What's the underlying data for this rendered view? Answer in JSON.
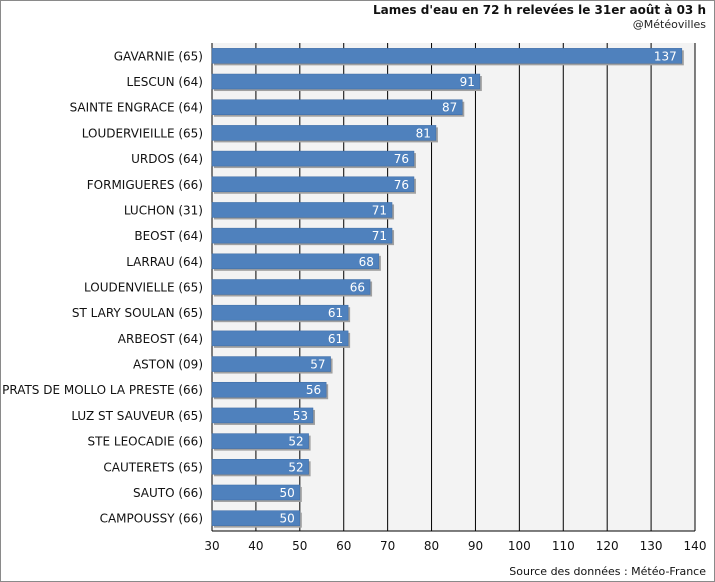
{
  "header": {
    "title": "Lames d'eau en 72 h relevées le 31er août à 03 h",
    "credit": "@Météovilles"
  },
  "footer": {
    "source": "Source des données : Météo-France"
  },
  "colors": {
    "bar_fill": "#4f81bd",
    "bar_shadow": "#a0a0a0",
    "plot_background": "#f3f3f3",
    "grid": "#000000",
    "value_text": "#ffffff"
  },
  "chart_data": {
    "type": "bar",
    "orientation": "horizontal",
    "categories": [
      "GAVARNIE (65)",
      "LESCUN (64)",
      "SAINTE ENGRACE (64)",
      "LOUDERVIEILLE (65)",
      "URDOS (64)",
      "FORMIGUERES (66)",
      "LUCHON (31)",
      "BEOST (64)",
      "LARRAU (64)",
      "LOUDENVIELLE (65)",
      "ST LARY SOULAN (65)",
      "ARBEOST (64)",
      "ASTON (09)",
      "PRATS DE MOLLO LA PRESTE (66)",
      "LUZ ST SAUVEUR (65)",
      "STE LEOCADIE (66)",
      "CAUTERETS (65)",
      "SAUTO (66)",
      "CAMPOUSSY (66)"
    ],
    "values": [
      137,
      91,
      87,
      81,
      76,
      76,
      71,
      71,
      68,
      66,
      61,
      61,
      57,
      56,
      53,
      52,
      52,
      50,
      50
    ],
    "xlim": [
      30,
      140
    ],
    "xticks": [
      30,
      40,
      50,
      60,
      70,
      80,
      90,
      100,
      110,
      120,
      130,
      140
    ],
    "xlabel": "",
    "ylabel": "",
    "grid": "vertical",
    "data_labels": true,
    "legend": "none"
  }
}
